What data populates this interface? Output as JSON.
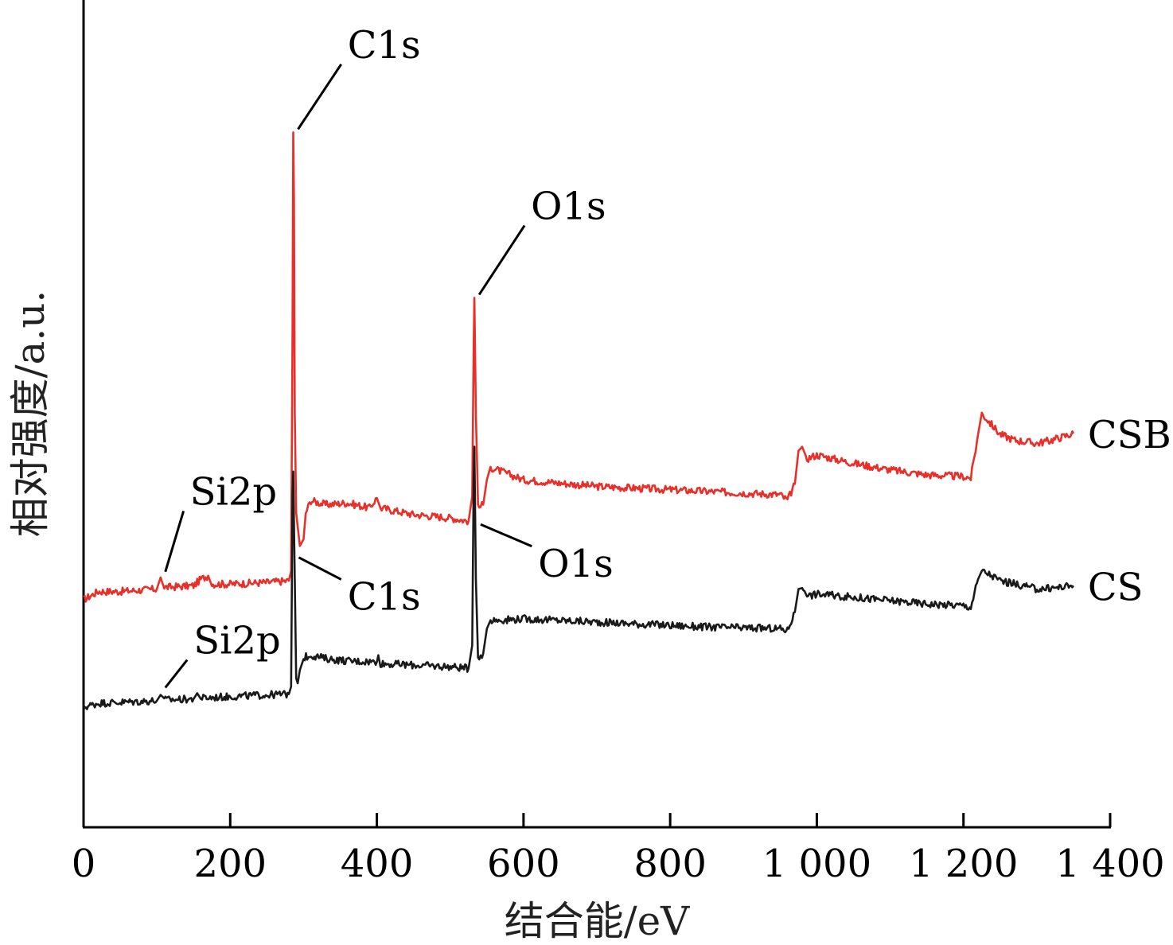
{
  "chart_data": {
    "type": "line",
    "xlabel": "结合能/eV",
    "ylabel": "相对强度/a.u.",
    "xlim": [
      0,
      1400
    ],
    "ylim": [
      0,
      100
    ],
    "x_ticks": [
      0,
      200,
      400,
      600,
      800,
      1000,
      1200,
      1400
    ],
    "x_tick_labels": [
      "0",
      "200",
      "400",
      "600",
      "800",
      "1 000",
      "1 200",
      "1 400"
    ],
    "grid": false,
    "series": [
      {
        "name": "CSB",
        "color": "#e8302b",
        "points": [
          [
            0,
            27.5
          ],
          [
            20,
            28.5
          ],
          [
            50,
            28.5
          ],
          [
            100,
            28.8
          ],
          [
            105,
            30.2
          ],
          [
            110,
            29.0
          ],
          [
            150,
            29.2
          ],
          [
            160,
            30.0
          ],
          [
            170,
            30.4
          ],
          [
            175,
            29.4
          ],
          [
            200,
            29.4
          ],
          [
            250,
            29.6
          ],
          [
            280,
            29.8
          ],
          [
            283,
            31.0
          ],
          [
            285,
            60.0
          ],
          [
            286,
            84.0
          ],
          [
            287,
            76.0
          ],
          [
            288,
            50.0
          ],
          [
            290,
            38.0
          ],
          [
            295,
            34.0
          ],
          [
            300,
            34.8
          ],
          [
            303,
            38.0
          ],
          [
            310,
            39.5
          ],
          [
            330,
            39.0
          ],
          [
            360,
            39.2
          ],
          [
            390,
            38.6
          ],
          [
            400,
            39.8
          ],
          [
            405,
            38.6
          ],
          [
            450,
            37.8
          ],
          [
            500,
            37.4
          ],
          [
            525,
            37.0
          ],
          [
            530,
            40.0
          ],
          [
            532,
            58.0
          ],
          [
            533,
            64.0
          ],
          [
            535,
            50.0
          ],
          [
            538,
            38.6
          ],
          [
            545,
            39.0
          ],
          [
            550,
            42.0
          ],
          [
            555,
            43.5
          ],
          [
            600,
            42.0
          ],
          [
            650,
            41.6
          ],
          [
            700,
            41.2
          ],
          [
            750,
            41.0
          ],
          [
            800,
            40.8
          ],
          [
            850,
            40.6
          ],
          [
            900,
            40.4
          ],
          [
            950,
            40.2
          ],
          [
            960,
            39.5
          ],
          [
            970,
            41.5
          ],
          [
            975,
            45.5
          ],
          [
            980,
            46.0
          ],
          [
            985,
            44.5
          ],
          [
            1000,
            45.0
          ],
          [
            1050,
            44.0
          ],
          [
            1100,
            43.2
          ],
          [
            1150,
            42.6
          ],
          [
            1200,
            42.4
          ],
          [
            1210,
            42.2
          ],
          [
            1220,
            47.5
          ],
          [
            1225,
            50.0
          ],
          [
            1235,
            49.0
          ],
          [
            1250,
            47.5
          ],
          [
            1270,
            46.8
          ],
          [
            1300,
            46.4
          ],
          [
            1320,
            46.8
          ],
          [
            1350,
            47.6
          ]
        ]
      },
      {
        "name": "CS",
        "color": "#1a1a1a",
        "points": [
          [
            0,
            14.5
          ],
          [
            20,
            15.0
          ],
          [
            50,
            15.1
          ],
          [
            100,
            15.3
          ],
          [
            105,
            16.0
          ],
          [
            110,
            15.4
          ],
          [
            150,
            15.5
          ],
          [
            155,
            16.2
          ],
          [
            160,
            15.6
          ],
          [
            200,
            15.8
          ],
          [
            250,
            16.0
          ],
          [
            280,
            16.1
          ],
          [
            283,
            17.0
          ],
          [
            285,
            40.0
          ],
          [
            286,
            43.0
          ],
          [
            288,
            30.0
          ],
          [
            290,
            18.0
          ],
          [
            292,
            17.4
          ],
          [
            295,
            19.0
          ],
          [
            300,
            20.5
          ],
          [
            310,
            20.8
          ],
          [
            330,
            20.4
          ],
          [
            360,
            20.1
          ],
          [
            400,
            20.0
          ],
          [
            402,
            20.8
          ],
          [
            405,
            19.8
          ],
          [
            450,
            19.6
          ],
          [
            500,
            19.4
          ],
          [
            525,
            19.2
          ],
          [
            530,
            22.0
          ],
          [
            532,
            42.0
          ],
          [
            533,
            46.0
          ],
          [
            535,
            30.0
          ],
          [
            538,
            20.6
          ],
          [
            545,
            21.0
          ],
          [
            550,
            24.0
          ],
          [
            555,
            25.0
          ],
          [
            600,
            25.2
          ],
          [
            650,
            25.0
          ],
          [
            700,
            24.8
          ],
          [
            750,
            24.6
          ],
          [
            800,
            24.4
          ],
          [
            850,
            24.2
          ],
          [
            900,
            24.1
          ],
          [
            950,
            24.0
          ],
          [
            960,
            23.8
          ],
          [
            970,
            26.0
          ],
          [
            975,
            28.8
          ],
          [
            980,
            29.0
          ],
          [
            990,
            28.0
          ],
          [
            1000,
            28.2
          ],
          [
            1050,
            27.8
          ],
          [
            1100,
            27.4
          ],
          [
            1150,
            27.0
          ],
          [
            1200,
            26.8
          ],
          [
            1210,
            26.6
          ],
          [
            1220,
            30.0
          ],
          [
            1225,
            31.0
          ],
          [
            1235,
            30.6
          ],
          [
            1250,
            29.8
          ],
          [
            1270,
            29.4
          ],
          [
            1300,
            28.8
          ],
          [
            1320,
            28.9
          ],
          [
            1350,
            29.2
          ]
        ]
      }
    ],
    "annotations": [
      {
        "text": "C1s",
        "series": "CSB",
        "x": 286,
        "y": 84.0,
        "label_x": 360,
        "label_y": 93.0
      },
      {
        "text": "O1s",
        "series": "CSB",
        "x": 533,
        "y": 64.0,
        "label_x": 610,
        "label_y": 73.5
      },
      {
        "text": "Si2p",
        "series": "CSB",
        "x": 105,
        "y": 30.5,
        "label_x": 145,
        "label_y": 39.0
      },
      {
        "text": "C1s",
        "series": "CS",
        "x": 287,
        "y": 33.0,
        "label_x": 360,
        "label_y": 29.0
      },
      {
        "text": "O1s",
        "series": "CS",
        "x": 535,
        "y": 37.0,
        "label_x": 620,
        "label_y": 33.0
      },
      {
        "text": "Si2p",
        "series": "CS",
        "x": 105,
        "y": 16.5,
        "label_x": 150,
        "label_y": 21.0
      }
    ]
  }
}
